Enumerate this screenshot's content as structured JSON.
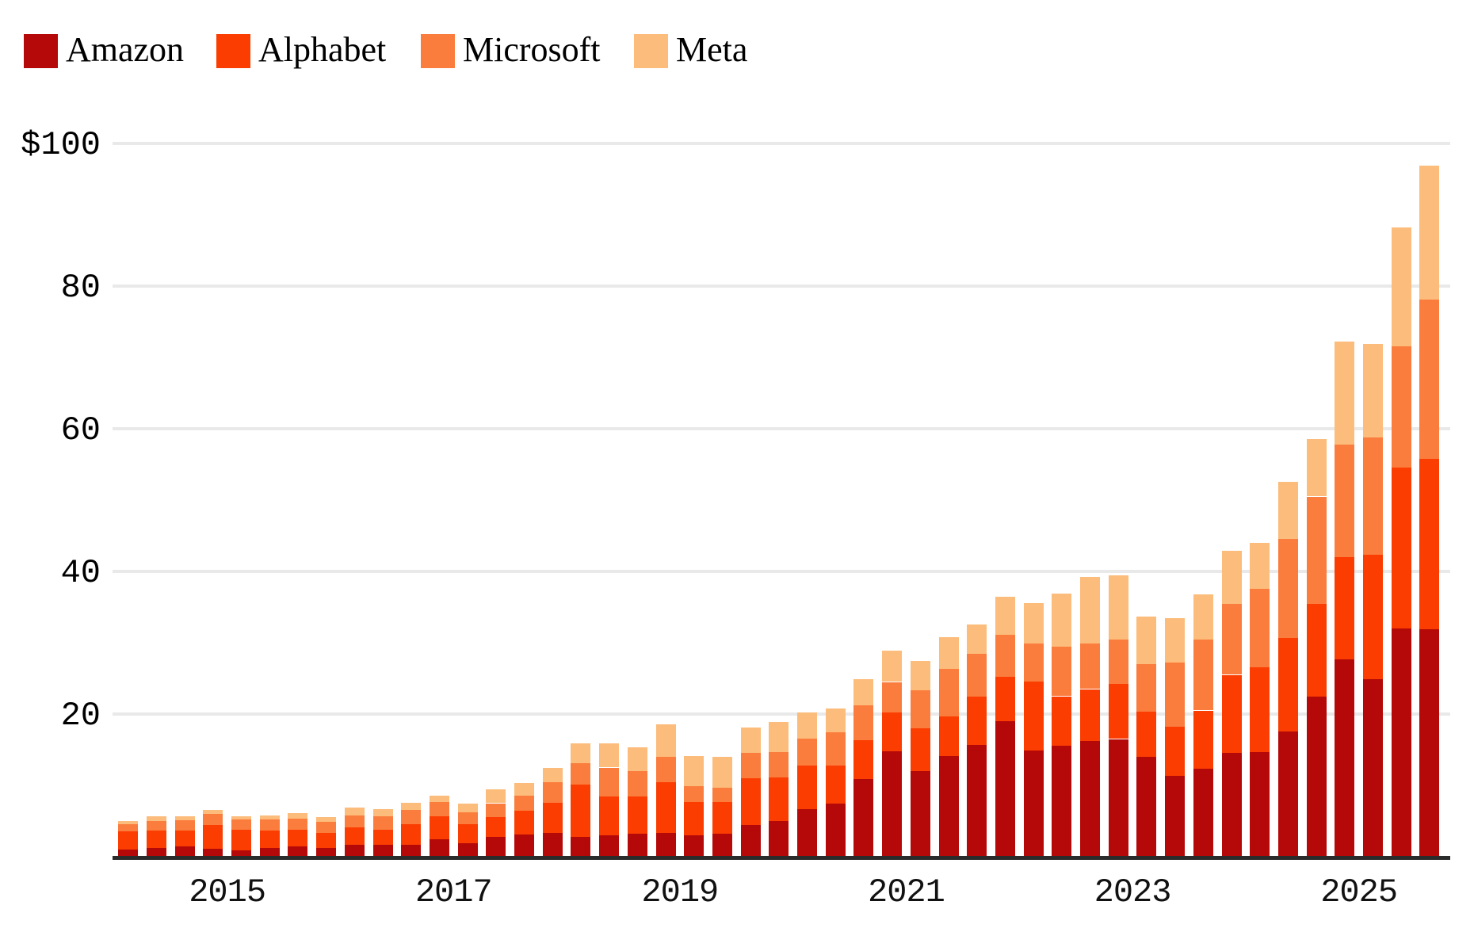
{
  "legend": {
    "items": [
      {
        "label": "Amazon",
        "color": "#b50909"
      },
      {
        "label": "Alphabet",
        "color": "#fb3d01"
      },
      {
        "label": "Microsoft",
        "color": "#fb7d3e"
      },
      {
        "label": "Meta",
        "color": "#fcbc7b"
      }
    ]
  },
  "y_axis": {
    "ticks": [
      {
        "label": "$100",
        "value": 100
      },
      {
        "label": "80",
        "value": 80
      },
      {
        "label": "60",
        "value": 60
      },
      {
        "label": "40",
        "value": 40
      },
      {
        "label": "20",
        "value": 20
      }
    ]
  },
  "x_axis": {
    "tick_years": [
      "2015",
      "2017",
      "2019",
      "2021",
      "2023",
      "2025"
    ]
  },
  "chart_data": {
    "type": "bar",
    "stacked": true,
    "title": "",
    "unit": "$ billions per quarter",
    "ylim": [
      0,
      100
    ],
    "grid_values": [
      20,
      40,
      60,
      80,
      100
    ],
    "legend_position": "top-left",
    "categories": [
      "2014 Q1",
      "2014 Q2",
      "2014 Q3",
      "2014 Q4",
      "2015 Q1",
      "2015 Q2",
      "2015 Q3",
      "2015 Q4",
      "2016 Q1",
      "2016 Q2",
      "2016 Q3",
      "2016 Q4",
      "2017 Q1",
      "2017 Q2",
      "2017 Q3",
      "2017 Q4",
      "2018 Q1",
      "2018 Q2",
      "2018 Q3",
      "2018 Q4",
      "2019 Q1",
      "2019 Q2",
      "2019 Q3",
      "2019 Q4",
      "2020 Q1",
      "2020 Q2",
      "2020 Q3",
      "2020 Q4",
      "2021 Q1",
      "2021 Q2",
      "2021 Q3",
      "2021 Q4",
      "2022 Q1",
      "2022 Q2",
      "2022 Q3",
      "2022 Q4",
      "2023 Q1",
      "2023 Q2",
      "2023 Q3",
      "2023 Q4",
      "2024 Q1",
      "2024 Q2",
      "2024 Q3",
      "2024 Q4",
      "2025 Q1",
      "2025 Q2",
      "2025 Q3"
    ],
    "series": [
      {
        "name": "Amazon",
        "color": "#b50909",
        "values": [
          1.0,
          1.2,
          1.4,
          1.1,
          0.9,
          1.2,
          1.4,
          1.2,
          1.7,
          1.7,
          1.7,
          2.4,
          1.9,
          2.8,
          3.1,
          3.3,
          2.8,
          3.0,
          3.2,
          3.3,
          3.0,
          3.2,
          4.4,
          5.0,
          6.7,
          7.4,
          10.9,
          14.8,
          12.0,
          14.1,
          15.7,
          19.0,
          14.9,
          15.6,
          16.2,
          16.5,
          14.0,
          11.3,
          12.3,
          14.6,
          14.7,
          17.6,
          22.4,
          27.7,
          24.9,
          32.0,
          31.9
        ]
      },
      {
        "name": "Alphabet",
        "color": "#fb3d01",
        "values": [
          2.6,
          2.5,
          2.3,
          3.4,
          2.9,
          2.5,
          2.4,
          2.1,
          2.4,
          2.1,
          2.9,
          3.3,
          2.7,
          2.8,
          3.3,
          4.3,
          7.3,
          5.5,
          5.3,
          7.2,
          4.7,
          4.5,
          6.6,
          6.1,
          6.1,
          5.4,
          5.4,
          5.4,
          6.0,
          5.6,
          6.7,
          6.2,
          9.7,
          6.9,
          7.3,
          7.7,
          6.3,
          6.9,
          8.2,
          10.9,
          11.9,
          13.1,
          13.1,
          14.3,
          17.4,
          22.6,
          23.9
        ]
      },
      {
        "name": "Microsoft",
        "color": "#fb7d3e",
        "values": [
          1.0,
          1.3,
          1.4,
          1.5,
          1.4,
          1.5,
          1.5,
          1.6,
          1.7,
          1.9,
          2.0,
          2.0,
          1.6,
          1.9,
          2.2,
          2.8,
          3.0,
          4.0,
          3.5,
          3.5,
          2.2,
          2.0,
          3.6,
          3.6,
          3.8,
          4.6,
          4.9,
          4.3,
          5.3,
          6.6,
          6.0,
          5.9,
          5.3,
          6.9,
          6.4,
          6.2,
          6.7,
          9.0,
          9.9,
          9.9,
          11.0,
          13.9,
          15.0,
          15.8,
          16.5,
          17.0,
          22.3
        ]
      },
      {
        "name": "Meta",
        "color": "#fcbc7b",
        "values": [
          0.4,
          0.7,
          0.6,
          0.6,
          0.5,
          0.6,
          0.8,
          0.7,
          1.1,
          1.0,
          1.0,
          0.9,
          1.2,
          1.9,
          1.7,
          2.1,
          2.8,
          3.4,
          3.3,
          4.6,
          4.2,
          4.3,
          3.5,
          4.2,
          3.6,
          3.4,
          3.7,
          4.4,
          4.1,
          4.5,
          4.2,
          5.3,
          5.7,
          7.5,
          9.3,
          9.0,
          6.7,
          6.2,
          6.4,
          7.5,
          6.4,
          8.0,
          8.1,
          14.4,
          13.1,
          16.6,
          18.8
        ]
      }
    ]
  },
  "colors": {
    "background": "#ffffff",
    "gridline": "#e9e9e9",
    "axis_line": "#2b2b2b",
    "text": "#000000"
  }
}
